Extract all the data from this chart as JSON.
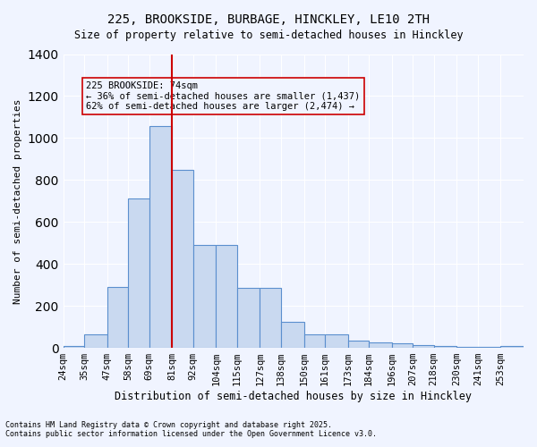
{
  "title1": "225, BROOKSIDE, BURBAGE, HINCKLEY, LE10 2TH",
  "title2": "Size of property relative to semi-detached houses in Hinckley",
  "xlabel": "Distribution of semi-detached houses by size in Hinckley",
  "ylabel": "Number of semi-detached properties",
  "bins": [
    "24sqm",
    "35sqm",
    "47sqm",
    "58sqm",
    "69sqm",
    "81sqm",
    "92sqm",
    "104sqm",
    "115sqm",
    "127sqm",
    "138sqm",
    "150sqm",
    "161sqm",
    "173sqm",
    "184sqm",
    "196sqm",
    "207sqm",
    "218sqm",
    "230sqm",
    "241sqm",
    "253sqm"
  ],
  "bin_edges": [
    24,
    35,
    47,
    58,
    69,
    81,
    92,
    104,
    115,
    127,
    138,
    150,
    161,
    173,
    184,
    196,
    207,
    218,
    230,
    241,
    253
  ],
  "values": [
    10,
    65,
    290,
    710,
    1055,
    850,
    490,
    490,
    285,
    285,
    125,
    65,
    65,
    35,
    25,
    20,
    15,
    10,
    5,
    5,
    10
  ],
  "bar_color": "#c9d9f0",
  "bar_edge_color": "#5b8fce",
  "property_size": 74,
  "property_line_x": 81,
  "annotation_title": "225 BROOKSIDE: 74sqm",
  "annotation_line1": "← 36% of semi-detached houses are smaller (1,437)",
  "annotation_line2": "62% of semi-detached houses are larger (2,474) →",
  "vline_color": "#cc0000",
  "ylim": [
    0,
    1400
  ],
  "yticks": [
    0,
    200,
    400,
    600,
    800,
    1000,
    1200,
    1400
  ],
  "footnote1": "Contains HM Land Registry data © Crown copyright and database right 2025.",
  "footnote2": "Contains public sector information licensed under the Open Government Licence v3.0.",
  "bg_color": "#f0f4ff",
  "grid_color": "#ffffff"
}
